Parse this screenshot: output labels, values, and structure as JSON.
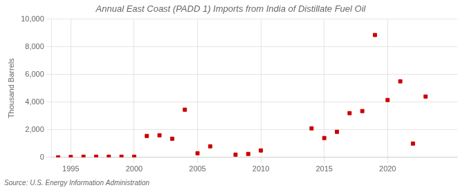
{
  "chart_data": {
    "type": "scatter",
    "title": "Annual East Coast (PADD 1) Imports from India of Distillate Fuel Oil",
    "ylabel": "Thousand Barrels",
    "annotation": "Source: U.S. Energy Information Administration",
    "x": [
      1994,
      1995,
      1996,
      1997,
      1998,
      1999,
      2000,
      2001,
      2002,
      2003,
      2004,
      2005,
      2006,
      2008,
      2009,
      2010,
      2014,
      2015,
      2016,
      2017,
      2018,
      2019,
      2020,
      2021,
      2022,
      2023
    ],
    "values": [
      5,
      30,
      50,
      50,
      50,
      50,
      50,
      1550,
      1600,
      1350,
      3450,
      300,
      800,
      200,
      250,
      500,
      2100,
      1400,
      1850,
      3200,
      3350,
      8850,
      4150,
      5500,
      1000,
      4400
    ],
    "color": "#cc0000",
    "marker": "square",
    "xlim": [
      1993.5,
      2025.5
    ],
    "xticks": [
      1995,
      2000,
      2005,
      2010,
      2015,
      2020
    ],
    "ylim": [
      0,
      10000
    ],
    "yticks": [
      0,
      {
        "value": 2000,
        "label": "2,000"
      },
      {
        "value": 4000,
        "label": "4,000"
      },
      {
        "value": 6000,
        "label": "6,000"
      },
      {
        "value": 8000,
        "label": "8,000"
      },
      {
        "value": 10000,
        "label": "10,000"
      }
    ],
    "grid": true
  }
}
